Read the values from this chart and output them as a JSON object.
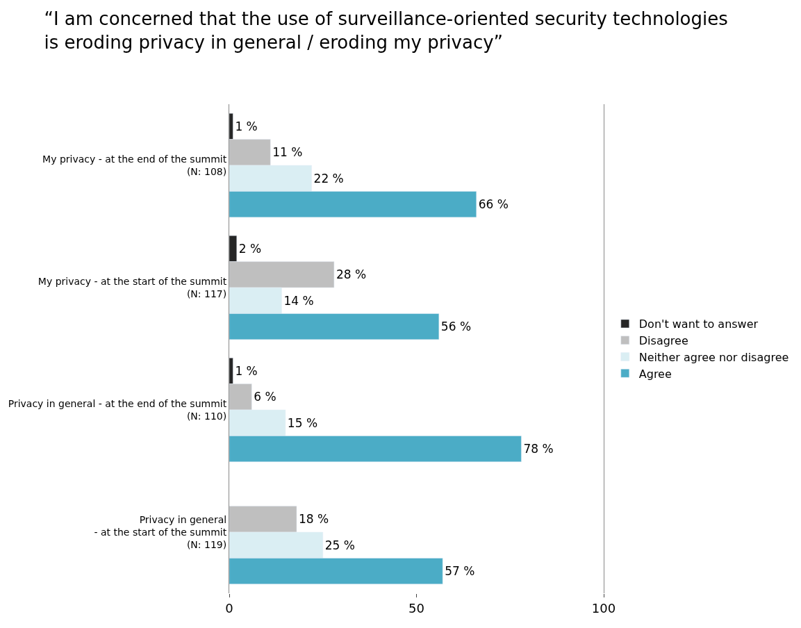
{
  "chart_data": {
    "type": "bar",
    "orientation": "horizontal",
    "title": "“I am concerned that the use of surveillance-oriented security technologies\nis eroding privacy in general / eroding my privacy”",
    "categories": [
      "My privacy - at the end of the summit\n(N: 108)",
      "My privacy - at the start of the summit\n(N: 117)",
      "Privacy in general - at the end of the summit\n(N: 110)",
      "Privacy in general\n- at the start of the summit\n(N: 119)"
    ],
    "series": [
      {
        "name": "Don't want to answer",
        "color": "#262626",
        "values": [
          1,
          2,
          1,
          null
        ],
        "value_labels": [
          "1 %",
          "2 %",
          "1 %",
          null
        ]
      },
      {
        "name": "Disagree",
        "color": "#bfbfbf",
        "values": [
          11,
          28,
          6,
          18
        ],
        "value_labels": [
          "11 %",
          "28 %",
          "6 %",
          "18 %"
        ]
      },
      {
        "name": "Neither agree nor disagree",
        "color": "#daeef3",
        "values": [
          22,
          14,
          15,
          25
        ],
        "value_labels": [
          "22 %",
          "14 %",
          "15 %",
          "25 %"
        ]
      },
      {
        "name": "Agree",
        "color": "#4bacc6",
        "values": [
          66,
          56,
          78,
          57
        ],
        "value_labels": [
          "66 %",
          "56 %",
          "78 %",
          "57 %"
        ]
      }
    ],
    "xlim": [
      0,
      100
    ],
    "xticks": [
      0,
      50,
      100
    ],
    "legend": "right"
  }
}
